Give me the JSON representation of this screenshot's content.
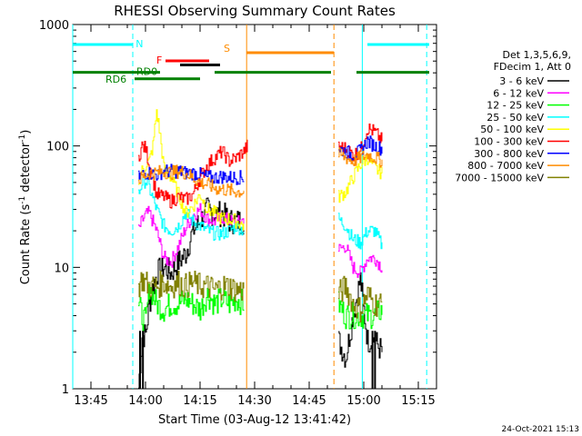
{
  "chart_data": {
    "type": "line",
    "title": "RHESSI Observing Summary Count Rates",
    "xlabel": "Start Time (03-Aug-12 13:41:42)",
    "ylabel_parts": [
      "Count Rate (s",
      "-1",
      " detector",
      "-1",
      ")"
    ],
    "yscale": "log",
    "ylim": [
      1,
      1000
    ],
    "xlim_minutes_after_13_40": [
      0,
      100
    ],
    "x_ticks": [
      {
        "m": 5,
        "label": "13:45"
      },
      {
        "m": 20,
        "label": "14:00"
      },
      {
        "m": 35,
        "label": "14:15"
      },
      {
        "m": 50,
        "label": "14:30"
      },
      {
        "m": 65,
        "label": "14:45"
      },
      {
        "m": 80,
        "label": "15:00"
      },
      {
        "m": 95,
        "label": "15:15"
      }
    ],
    "y_ticks": [
      {
        "v": 1,
        "label": "1"
      },
      {
        "v": 10,
        "label": "10"
      },
      {
        "v": 100,
        "label": "100"
      },
      {
        "v": 1000,
        "label": "1000"
      }
    ],
    "legend_header": [
      "Det 1,3,5,6,9,",
      "FDecim 1, Att 0"
    ],
    "series": [
      {
        "name": "3 - 6 keV",
        "color": "#000000",
        "seg1": [
          [
            18,
            1
          ],
          [
            19,
            2.7
          ],
          [
            20,
            2.8
          ],
          [
            21,
            5
          ],
          [
            23,
            9
          ],
          [
            25,
            10
          ],
          [
            27,
            9
          ],
          [
            29,
            11
          ],
          [
            31,
            13
          ],
          [
            33,
            20
          ],
          [
            35,
            24
          ],
          [
            37,
            30
          ],
          [
            39,
            27
          ],
          [
            41,
            28
          ],
          [
            43,
            24
          ],
          [
            45,
            24
          ],
          [
            47,
            24
          ]
        ],
        "seg2": [
          [
            73,
            2.5
          ],
          [
            75,
            1.8
          ],
          [
            77,
            4
          ],
          [
            79,
            8
          ],
          [
            81,
            2.5
          ],
          [
            83,
            2.5
          ],
          [
            85,
            2
          ]
        ]
      },
      {
        "name": "6 - 12 keV",
        "color": "#ff00ff",
        "seg1": [
          [
            18,
            20
          ],
          [
            19,
            24
          ],
          [
            20,
            27
          ],
          [
            21,
            28
          ],
          [
            23,
            20
          ],
          [
            25,
            12
          ],
          [
            27,
            11
          ],
          [
            29,
            15
          ],
          [
            31,
            21
          ],
          [
            33,
            27
          ],
          [
            35,
            30
          ],
          [
            37,
            25
          ],
          [
            39,
            24
          ],
          [
            41,
            26
          ],
          [
            43,
            24
          ],
          [
            45,
            23
          ],
          [
            47,
            25
          ]
        ],
        "seg2": [
          [
            73,
            14
          ],
          [
            75,
            15
          ],
          [
            77,
            10
          ],
          [
            79,
            9
          ],
          [
            81,
            12
          ],
          [
            83,
            12
          ],
          [
            85,
            10
          ]
        ]
      },
      {
        "name": "12 - 25 keV",
        "color": "#00ff00",
        "seg1": [
          [
            18,
            5
          ],
          [
            19,
            4
          ],
          [
            20,
            3.5
          ],
          [
            21,
            7
          ],
          [
            23,
            5
          ],
          [
            25,
            4.5
          ],
          [
            27,
            5
          ],
          [
            29,
            5
          ],
          [
            31,
            5.5
          ],
          [
            33,
            5
          ],
          [
            35,
            4.5
          ],
          [
            37,
            6
          ],
          [
            39,
            5
          ],
          [
            41,
            5.5
          ],
          [
            43,
            5
          ],
          [
            45,
            5.5
          ],
          [
            47,
            5
          ]
        ],
        "seg2": [
          [
            73,
            5
          ],
          [
            75,
            4
          ],
          [
            77,
            4
          ],
          [
            79,
            4
          ],
          [
            81,
            4
          ],
          [
            83,
            4
          ],
          [
            85,
            4.5
          ]
        ]
      },
      {
        "name": "25 - 50 keV",
        "color": "#00ffff",
        "seg1": [
          [
            18,
            40
          ],
          [
            19,
            50
          ],
          [
            20,
            52
          ],
          [
            21,
            45
          ],
          [
            23,
            30
          ],
          [
            25,
            22
          ],
          [
            27,
            20
          ],
          [
            29,
            22
          ],
          [
            31,
            28
          ],
          [
            33,
            24
          ],
          [
            35,
            22
          ],
          [
            37,
            20
          ],
          [
            39,
            19
          ],
          [
            41,
            19
          ],
          [
            43,
            20
          ],
          [
            45,
            22
          ],
          [
            47,
            20
          ]
        ],
        "seg2": [
          [
            73,
            25
          ],
          [
            75,
            22
          ],
          [
            77,
            17
          ],
          [
            79,
            16
          ],
          [
            81,
            20
          ],
          [
            83,
            20
          ],
          [
            85,
            15
          ]
        ]
      },
      {
        "name": "50 - 100 keV",
        "color": "#ffff00",
        "seg1": [
          [
            18,
            55
          ],
          [
            19,
            62
          ],
          [
            20,
            70
          ],
          [
            21,
            75
          ],
          [
            22,
            100
          ],
          [
            23,
            195
          ],
          [
            24,
            120
          ],
          [
            25,
            65
          ],
          [
            27,
            55
          ],
          [
            29,
            40
          ],
          [
            31,
            28
          ],
          [
            33,
            32
          ],
          [
            35,
            40
          ],
          [
            37,
            30
          ],
          [
            39,
            28
          ],
          [
            41,
            25
          ],
          [
            43,
            25
          ],
          [
            45,
            24
          ],
          [
            47,
            22
          ]
        ],
        "seg2": [
          [
            73,
            38
          ],
          [
            75,
            42
          ],
          [
            77,
            55
          ],
          [
            79,
            70
          ],
          [
            81,
            80
          ],
          [
            83,
            65
          ],
          [
            85,
            60
          ]
        ]
      },
      {
        "name": "100 - 300 keV",
        "color": "#ff0000",
        "seg1": [
          [
            18,
            80
          ],
          [
            19,
            100
          ],
          [
            20,
            95
          ],
          [
            21,
            70
          ],
          [
            23,
            40
          ],
          [
            25,
            38
          ],
          [
            27,
            35
          ],
          [
            29,
            38
          ],
          [
            31,
            36
          ],
          [
            33,
            40
          ],
          [
            35,
            55
          ],
          [
            37,
            70
          ],
          [
            39,
            80
          ],
          [
            41,
            90
          ],
          [
            43,
            75
          ],
          [
            45,
            80
          ],
          [
            47,
            90
          ],
          [
            48,
            100
          ]
        ],
        "seg2": [
          [
            73,
            100
          ],
          [
            75,
            95
          ],
          [
            77,
            85
          ],
          [
            79,
            90
          ],
          [
            81,
            140
          ],
          [
            83,
            130
          ],
          [
            85,
            110
          ]
        ]
      },
      {
        "name": "300 - 800 keV",
        "color": "#0000ff",
        "seg1": [
          [
            18,
            55
          ],
          [
            19,
            58
          ],
          [
            20,
            60
          ],
          [
            21,
            60
          ],
          [
            23,
            58
          ],
          [
            25,
            62
          ],
          [
            27,
            62
          ],
          [
            29,
            62
          ],
          [
            31,
            60
          ],
          [
            33,
            60
          ],
          [
            35,
            58
          ],
          [
            37,
            55
          ],
          [
            39,
            55
          ],
          [
            41,
            56
          ],
          [
            43,
            55
          ],
          [
            45,
            55
          ],
          [
            47,
            55
          ]
        ],
        "seg2": [
          [
            73,
            95
          ],
          [
            75,
            90
          ],
          [
            77,
            85
          ],
          [
            79,
            90
          ],
          [
            81,
            110
          ],
          [
            83,
            100
          ],
          [
            85,
            95
          ]
        ]
      },
      {
        "name": "800 - 7000 keV",
        "color": "#ff8c00",
        "seg1": [
          [
            18,
            52
          ],
          [
            19,
            55
          ],
          [
            20,
            58
          ],
          [
            21,
            60
          ],
          [
            23,
            60
          ],
          [
            25,
            62
          ],
          [
            27,
            60
          ],
          [
            29,
            62
          ],
          [
            31,
            60
          ],
          [
            33,
            55
          ],
          [
            35,
            50
          ],
          [
            37,
            48
          ],
          [
            39,
            45
          ],
          [
            41,
            44
          ],
          [
            43,
            43
          ],
          [
            45,
            42
          ],
          [
            47,
            42
          ]
        ],
        "seg2": [
          [
            73,
            85
          ],
          [
            75,
            80
          ],
          [
            77,
            75
          ],
          [
            79,
            80
          ],
          [
            81,
            85
          ],
          [
            83,
            80
          ],
          [
            85,
            75
          ]
        ]
      },
      {
        "name": "7000 - 15000 keV",
        "color": "#808000",
        "seg1": [
          [
            18,
            7
          ],
          [
            19,
            8
          ],
          [
            20,
            7.5
          ],
          [
            21,
            7
          ],
          [
            23,
            7
          ],
          [
            25,
            7.5
          ],
          [
            27,
            7
          ],
          [
            29,
            7.5
          ],
          [
            31,
            7
          ],
          [
            33,
            7.5
          ],
          [
            35,
            7
          ],
          [
            37,
            7
          ],
          [
            39,
            6.5
          ],
          [
            41,
            7
          ],
          [
            43,
            7
          ],
          [
            45,
            6.5
          ],
          [
            47,
            6.5
          ]
        ],
        "seg2": [
          [
            73,
            6
          ],
          [
            75,
            7
          ],
          [
            77,
            5
          ],
          [
            79,
            4.5
          ],
          [
            81,
            6
          ],
          [
            83,
            5
          ],
          [
            85,
            5
          ]
        ]
      }
    ],
    "flags": [
      {
        "name": "N",
        "color": "#00ffff",
        "y_rank": 0,
        "spans": [
          [
            0,
            16.5
          ],
          [
            81,
            98
          ]
        ]
      },
      {
        "name": "S",
        "color": "#ff8c00",
        "y_rank": 0.5,
        "spans": [
          [
            47.8,
            71.8
          ]
        ]
      },
      {
        "name": "F",
        "color": "#ff0000",
        "y_rank": 1,
        "spans": [
          [
            25.5,
            37.5
          ]
        ]
      },
      {
        "name": "F",
        "color": "#000000",
        "y_rank": 1.25,
        "spans": [
          [
            29.5,
            40.5
          ]
        ]
      },
      {
        "name": "RD0",
        "color": "#008000",
        "y_rank": 1.7,
        "spans": [
          [
            0,
            24
          ],
          [
            39,
            71
          ],
          [
            78,
            98
          ]
        ]
      },
      {
        "name": "RD6",
        "color": "#008000",
        "y_rank": 2.1,
        "spans": [
          [
            17,
            35
          ]
        ]
      }
    ],
    "vlines": [
      {
        "m": 0,
        "color": "#00ffff",
        "dash": false
      },
      {
        "m": 16.5,
        "color": "#00ffff",
        "dash": true
      },
      {
        "m": 47.8,
        "color": "#ff8c00",
        "dash": false
      },
      {
        "m": 71.8,
        "color": "#ff8c00",
        "dash": true
      },
      {
        "m": 79.6,
        "color": "#00ffff",
        "dash": false
      },
      {
        "m": 97.3,
        "color": "#00ffff",
        "dash": true
      }
    ],
    "stamp": "24-Oct-2021 15:13"
  }
}
